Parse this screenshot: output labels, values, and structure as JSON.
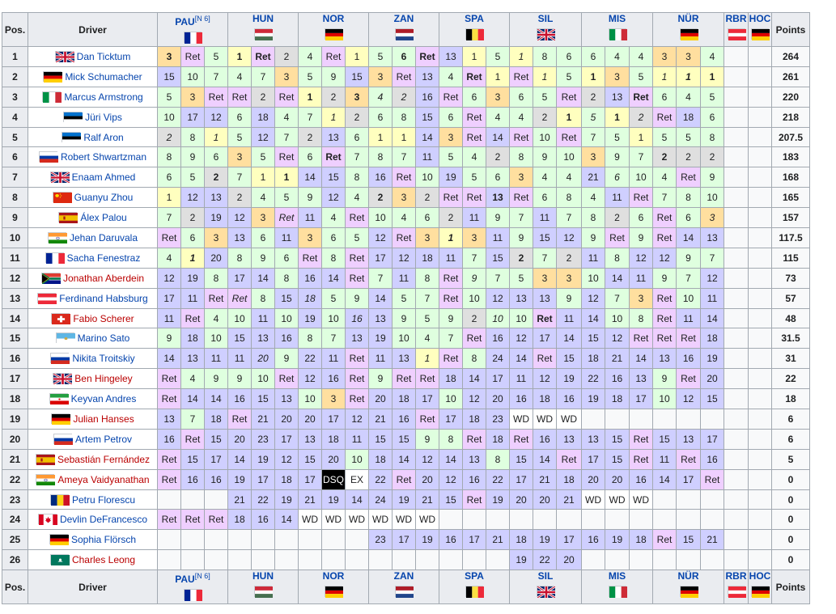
{
  "header": {
    "pos": "Pos.",
    "driver": "Driver",
    "points": "Points",
    "note": "[N 6]"
  },
  "rounds": [
    {
      "code": "PAU",
      "country": "France",
      "flag": "fr",
      "races": 3
    },
    {
      "code": "HUN",
      "country": "Hungary",
      "flag": "hu",
      "races": 3
    },
    {
      "code": "NOR",
      "country": "Germany",
      "flag": "de",
      "races": 3
    },
    {
      "code": "ZAN",
      "country": "Netherlands",
      "flag": "nl",
      "races": 3
    },
    {
      "code": "SPA",
      "country": "Belgium",
      "flag": "be",
      "races": 3
    },
    {
      "code": "SIL",
      "country": "United Kingdom",
      "flag": "gb",
      "races": 3
    },
    {
      "code": "MIS",
      "country": "Italy",
      "flag": "it",
      "races": 3
    },
    {
      "code": "NÜR",
      "country": "Germany",
      "flag": "de",
      "races": 3
    },
    {
      "code": "RBR",
      "country": "Austria",
      "flag": "at",
      "races": 1
    },
    {
      "code": "HOC",
      "country": "Germany",
      "flag": "de",
      "races": 1
    }
  ],
  "colors": {
    "gold": "#ffffbf",
    "silver": "#dfdfdf",
    "bronze": "#ffdf9f",
    "green": "#dfffdf",
    "blue": "#cfcfff",
    "purple": "#efcfff",
    "black": "#000000",
    "white": "#ffffff",
    "link": "#0645ad",
    "redlink": "#ba0000"
  },
  "drivers": [
    {
      "pos": "1",
      "name": "Dan Ticktum",
      "flag": "gb",
      "red": false,
      "points": "264",
      "results": [
        "3|B",
        "Ret",
        "5",
        "1|B",
        "Ret|B",
        "2",
        "4",
        "Ret",
        "1",
        "5",
        "6|B",
        "Ret|B",
        "13",
        "1",
        "5",
        "1|I",
        "8",
        "6",
        "6",
        "4",
        "4",
        "3",
        "3",
        "4",
        "",
        ""
      ]
    },
    {
      "pos": "2",
      "name": "Mick Schumacher",
      "flag": "de",
      "red": false,
      "points": "261",
      "results": [
        "15",
        "10",
        "7",
        "4",
        "7",
        "3",
        "5",
        "9",
        "15",
        "3",
        "Ret",
        "13",
        "4",
        "Ret|B",
        "1",
        "Ret",
        "1|I",
        "5",
        "1|B",
        "3",
        "5",
        "1|I",
        "1|BI",
        "1|B",
        "",
        ""
      ]
    },
    {
      "pos": "3",
      "name": "Marcus Armstrong",
      "flag": "it",
      "red": false,
      "points": "220",
      "results": [
        "5",
        "3",
        "Ret",
        "Ret",
        "2",
        "Ret",
        "1|B",
        "2",
        "3|B",
        "4|I",
        "2|I",
        "16",
        "Ret",
        "6",
        "3",
        "6",
        "5",
        "Ret",
        "2",
        "13",
        "Ret|B",
        "6",
        "4",
        "5",
        "",
        ""
      ]
    },
    {
      "pos": "4",
      "name": "Jüri Vips",
      "flag": "ee",
      "red": false,
      "points": "218",
      "results": [
        "10",
        "17",
        "12",
        "6",
        "18",
        "4",
        "7",
        "1|I",
        "2",
        "6",
        "8",
        "15",
        "6",
        "Ret",
        "4",
        "4",
        "2",
        "1|B",
        "5|I",
        "1|B",
        "2|I",
        "Ret",
        "18",
        "6",
        "",
        ""
      ]
    },
    {
      "pos": "5",
      "name": "Ralf Aron",
      "flag": "ee",
      "red": false,
      "points": "207.5",
      "results": [
        "2|I",
        "8",
        "1|I",
        "5",
        "12",
        "7",
        "2",
        "13",
        "6",
        "1",
        "1",
        "14",
        "3",
        "Ret",
        "14",
        "Ret",
        "10",
        "Ret",
        "7",
        "5",
        "1",
        "5",
        "5",
        "8",
        "",
        ""
      ]
    },
    {
      "pos": "6",
      "name": "Robert Shwartzman",
      "flag": "ru",
      "red": false,
      "points": "183",
      "results": [
        "8",
        "9",
        "6",
        "3",
        "5",
        "Ret",
        "6",
        "Ret|B",
        "7",
        "8",
        "7",
        "11",
        "5",
        "4",
        "2",
        "8",
        "9",
        "10",
        "3",
        "9",
        "7",
        "2|B",
        "2",
        "2",
        "",
        ""
      ]
    },
    {
      "pos": "7",
      "name": "Enaam Ahmed",
      "flag": "gb",
      "red": false,
      "points": "168",
      "results": [
        "6",
        "5",
        "2|B",
        "7",
        "1",
        "1|B",
        "14",
        "15",
        "8",
        "16",
        "Ret",
        "10",
        "19",
        "5",
        "6",
        "3",
        "4",
        "4",
        "21",
        "6|I",
        "10",
        "4",
        "Ret",
        "9",
        "",
        ""
      ]
    },
    {
      "pos": "8",
      "name": "Guanyu Zhou",
      "flag": "cn",
      "red": false,
      "points": "165",
      "results": [
        "1",
        "12",
        "13",
        "2",
        "4",
        "5",
        "9",
        "12",
        "4",
        "2|B",
        "3",
        "2",
        "Ret",
        "Ret",
        "13|B",
        "Ret",
        "6",
        "8",
        "4",
        "11",
        "Ret",
        "7",
        "8",
        "10",
        "",
        ""
      ]
    },
    {
      "pos": "9",
      "name": "Álex Palou",
      "flag": "es",
      "red": false,
      "points": "157",
      "results": [
        "7",
        "2",
        "19",
        "12",
        "3",
        "Ret|I",
        "11",
        "4",
        "Ret",
        "10",
        "4",
        "6",
        "2",
        "11",
        "9",
        "7",
        "11",
        "7",
        "8",
        "2",
        "6",
        "Ret",
        "6",
        "3|I",
        "",
        ""
      ]
    },
    {
      "pos": "10",
      "name": "Jehan Daruvala",
      "flag": "in",
      "red": false,
      "points": "117.5",
      "results": [
        "Ret",
        "6",
        "3",
        "13",
        "6",
        "11",
        "3",
        "6",
        "5",
        "12",
        "Ret",
        "3",
        "1|BI",
        "3",
        "11",
        "9",
        "15",
        "12",
        "9",
        "Ret",
        "9",
        "Ret",
        "14",
        "13",
        "",
        ""
      ]
    },
    {
      "pos": "11",
      "name": "Sacha Fenestraz",
      "flag": "fr",
      "red": false,
      "points": "115",
      "results": [
        "4",
        "1|BI",
        "20",
        "8",
        "9",
        "6",
        "Ret",
        "8",
        "Ret",
        "17",
        "12",
        "18",
        "11",
        "7",
        "15",
        "2|B",
        "7",
        "2",
        "11",
        "8",
        "12",
        "12",
        "9",
        "7",
        "",
        ""
      ]
    },
    {
      "pos": "12",
      "name": "Jonathan Aberdein",
      "flag": "za",
      "red": true,
      "points": "73",
      "results": [
        "12",
        "19",
        "8",
        "17",
        "14",
        "8",
        "16",
        "14",
        "Ret",
        "7",
        "11",
        "8",
        "Ret",
        "9|I",
        "7",
        "5",
        "3",
        "3",
        "10",
        "14",
        "11",
        "9",
        "7",
        "12",
        "",
        ""
      ]
    },
    {
      "pos": "13",
      "name": "Ferdinand Habsburg",
      "flag": "at",
      "red": false,
      "points": "57",
      "results": [
        "17",
        "11",
        "Ret",
        "Ret|I",
        "8",
        "15",
        "18|I",
        "5",
        "9",
        "14",
        "5",
        "7",
        "Ret",
        "10",
        "12",
        "13",
        "13",
        "9",
        "12",
        "7",
        "3",
        "Ret",
        "10",
        "11",
        "",
        ""
      ]
    },
    {
      "pos": "14",
      "name": "Fabio Scherer",
      "flag": "ch",
      "red": true,
      "points": "48",
      "results": [
        "11",
        "Ret",
        "4",
        "10",
        "11",
        "10",
        "19",
        "10",
        "16|I",
        "13",
        "9",
        "5",
        "9",
        "2",
        "10|I",
        "10",
        "Ret|B",
        "11",
        "14",
        "10",
        "8",
        "Ret",
        "11",
        "14",
        "",
        ""
      ]
    },
    {
      "pos": "15",
      "name": "Marino Sato",
      "flag": "jp",
      "red": false,
      "points": "31.5",
      "results": [
        "9",
        "18",
        "10",
        "15",
        "13",
        "16",
        "8",
        "7",
        "13",
        "19",
        "10",
        "4",
        "7",
        "Ret",
        "16",
        "12",
        "17",
        "14",
        "15",
        "12",
        "Ret",
        "Ret",
        "Ret",
        "18",
        "",
        ""
      ]
    },
    {
      "pos": "16",
      "name": "Nikita Troitskiy",
      "flag": "ru",
      "red": false,
      "points": "31",
      "results": [
        "14",
        "13",
        "11",
        "11",
        "20|I",
        "9",
        "22",
        "11",
        "Ret",
        "11",
        "13",
        "1|I",
        "Ret",
        "8",
        "24",
        "14",
        "Ret",
        "15",
        "18",
        "21",
        "14",
        "13",
        "16",
        "19",
        "",
        ""
      ]
    },
    {
      "pos": "17",
      "name": "Ben Hingeley",
      "flag": "gb",
      "red": true,
      "points": "22",
      "results": [
        "Ret",
        "4",
        "9",
        "9",
        "10",
        "Ret",
        "12",
        "16",
        "Ret",
        "9",
        "Ret",
        "Ret",
        "18",
        "14",
        "17",
        "11",
        "12",
        "19",
        "22",
        "16",
        "13",
        "9",
        "Ret",
        "20",
        "",
        ""
      ]
    },
    {
      "pos": "18",
      "name": "Keyvan Andres",
      "flag": "ir",
      "red": false,
      "points": "18",
      "results": [
        "Ret",
        "14",
        "14",
        "16",
        "15",
        "13",
        "10",
        "3",
        "Ret",
        "20",
        "18",
        "17",
        "10",
        "12",
        "20",
        "16",
        "18",
        "16",
        "19",
        "18",
        "17",
        "10",
        "12",
        "15",
        "",
        ""
      ]
    },
    {
      "pos": "19",
      "name": "Julian Hanses",
      "flag": "de",
      "red": true,
      "points": "6",
      "results": [
        "13",
        "7",
        "18",
        "Ret",
        "21",
        "20",
        "20",
        "17",
        "12",
        "21",
        "16",
        "Ret",
        "17",
        "18",
        "23",
        "WD",
        "WD",
        "WD",
        "",
        "",
        "",
        "",
        "",
        "",
        "",
        ""
      ]
    },
    {
      "pos": "20",
      "name": "Artem Petrov",
      "flag": "ru",
      "red": false,
      "points": "6",
      "results": [
        "16",
        "Ret",
        "15",
        "20",
        "23",
        "17",
        "13",
        "18",
        "11",
        "15",
        "15",
        "9",
        "8",
        "Ret",
        "18",
        "Ret",
        "16",
        "13",
        "13",
        "15",
        "Ret",
        "15",
        "13",
        "17",
        "",
        ""
      ]
    },
    {
      "pos": "21",
      "name": "Sebastián Fernández",
      "flag": "es",
      "red": true,
      "points": "5",
      "results": [
        "Ret",
        "15",
        "17",
        "14",
        "19",
        "12",
        "15",
        "20",
        "10",
        "18",
        "14",
        "12",
        "14",
        "13",
        "8",
        "15",
        "14",
        "Ret",
        "17",
        "15",
        "Ret",
        "11",
        "Ret",
        "16",
        "",
        ""
      ]
    },
    {
      "pos": "22",
      "name": "Ameya Vaidyanathan",
      "flag": "in",
      "red": true,
      "points": "0",
      "results": [
        "Ret",
        "16",
        "16",
        "19",
        "17",
        "18",
        "17",
        "DSQ",
        "EX",
        "22",
        "Ret",
        "20",
        "12",
        "16",
        "22",
        "17",
        "21",
        "18",
        "20",
        "20",
        "16",
        "14",
        "17",
        "Ret",
        "",
        ""
      ]
    },
    {
      "pos": "23",
      "name": "Petru Florescu",
      "flag": "ro",
      "red": false,
      "points": "0",
      "results": [
        "",
        "",
        "",
        "21",
        "22",
        "19",
        "21",
        "19",
        "14",
        "24",
        "19",
        "21",
        "15",
        "Ret",
        "19",
        "20",
        "20",
        "21",
        "WD",
        "WD",
        "WD",
        "",
        "",
        "",
        "",
        ""
      ]
    },
    {
      "pos": "24",
      "name": "Devlin DeFrancesco",
      "flag": "ca",
      "red": false,
      "points": "0",
      "results": [
        "Ret",
        "Ret",
        "Ret",
        "18",
        "16",
        "14",
        "WD",
        "WD",
        "WD",
        "WD",
        "WD",
        "WD",
        "",
        "",
        "",
        "",
        "",
        "",
        "",
        "",
        "",
        "",
        "",
        "",
        "",
        ""
      ]
    },
    {
      "pos": "25",
      "name": "Sophia Flörsch",
      "flag": "de",
      "red": false,
      "points": "0",
      "results": [
        "",
        "",
        "",
        "",
        "",
        "",
        "",
        "",
        "",
        "23",
        "17",
        "19",
        "16",
        "17",
        "21",
        "18",
        "19",
        "17",
        "16",
        "19",
        "18",
        "Ret",
        "15",
        "21",
        "",
        ""
      ]
    },
    {
      "pos": "26",
      "name": "Charles Leong",
      "flag": "mo",
      "red": true,
      "points": "0",
      "results": [
        "",
        "",
        "",
        "",
        "",
        "",
        "",
        "",
        "",
        "",
        "",
        "",
        "",
        "",
        "",
        "19",
        "22",
        "20",
        "",
        "",
        "",
        "",
        "",
        "",
        "",
        ""
      ]
    }
  ]
}
